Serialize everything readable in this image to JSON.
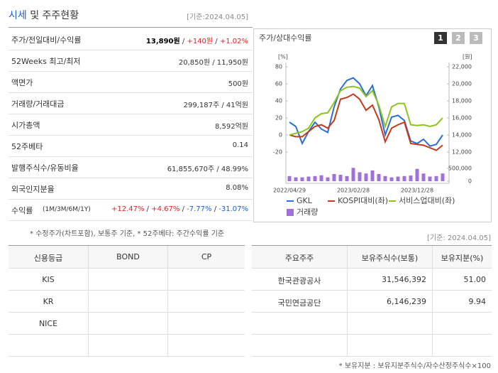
{
  "header": {
    "title_main": "시세",
    "title_rest": "및 주주현황",
    "date": "[기준:2024.04.05]"
  },
  "quote": {
    "rows": [
      {
        "label": "주가/전일대비/수익률",
        "value": [
          {
            "text": "13,890원",
            "bold": true
          },
          {
            "text": " / "
          },
          {
            "text": "+140원",
            "color": "#e02020"
          },
          {
            "text": " / "
          },
          {
            "text": "+1.02%",
            "color": "#e02020"
          }
        ]
      },
      {
        "label": "52Weeks 최고/최저",
        "value": [
          {
            "text": "20,850원 / 11,950원"
          }
        ]
      },
      {
        "label": "액면가",
        "value": [
          {
            "text": "500원"
          }
        ]
      },
      {
        "label": "거래량/거래대금",
        "value": [
          {
            "text": "299,187주 / 41억원"
          }
        ]
      },
      {
        "label": "시가총액",
        "value": [
          {
            "text": "8,592억원"
          }
        ]
      },
      {
        "label": "52주베타",
        "value": [
          {
            "text": "0.14"
          }
        ]
      },
      {
        "label": "발행주식수/유동비율",
        "value": [
          {
            "text": "61,855,670주 / 48.99%"
          }
        ]
      },
      {
        "label": "외국인지분율",
        "value": [
          {
            "text": "8.08%"
          }
        ]
      },
      {
        "label": "수익률",
        "label_sub": "(1M/3M/6M/1Y)",
        "value": [
          {
            "text": "+12.47%",
            "color": "#e02020"
          },
          {
            "text": " / "
          },
          {
            "text": "+4.67%",
            "color": "#e02020"
          },
          {
            "text": " / "
          },
          {
            "text": "-7.77%",
            "color": "#1a5fd0"
          },
          {
            "text": " / "
          },
          {
            "text": "-31.07%",
            "color": "#1a5fd0"
          }
        ]
      }
    ],
    "note": "* 수정주가(차트포함), 보통주 기준, * 52주베타: 주간수익률 기준"
  },
  "chart_data": {
    "type": "line",
    "title": "주가/상대수익률",
    "buttons": [
      "1",
      "2",
      "3"
    ],
    "ylabel": "[%]",
    "y2label": "[원]",
    "categories": [
      "2022/04/29",
      null,
      null,
      null,
      null,
      null,
      null,
      null,
      null,
      null,
      "2023/02/28",
      null,
      null,
      null,
      null,
      null,
      null,
      null,
      null,
      null,
      "2023/12/28",
      null,
      null,
      null,
      null
    ],
    "ylim": [
      -20,
      80
    ],
    "yticks": [
      80,
      60,
      40,
      20,
      0,
      -20
    ],
    "y2lim": [
      12000,
      22000
    ],
    "y2ticks": [
      {
        "value": 22000,
        "label": "22,000"
      },
      {
        "value": 20000,
        "label": "20,000"
      },
      {
        "value": 18000,
        "label": "18,000"
      },
      {
        "value": 16000,
        "label": "16,000"
      },
      {
        "value": 14000,
        "label": "14,000"
      },
      {
        "value": 12000,
        "label": "12,000"
      }
    ],
    "y3lim": [
      0,
      500000
    ],
    "y3ticks": [
      {
        "value": 500000,
        "label": "500,000"
      },
      0
    ],
    "series": [
      {
        "name": "GKL",
        "color": "#2a6fd6",
        "axis": "y2",
        "values": [
          15500,
          15000,
          13000,
          14400,
          15500,
          14700,
          14300,
          17300,
          19400,
          20400,
          20700,
          20000,
          18600,
          19800,
          17300,
          14000,
          16100,
          16300,
          15700,
          13300,
          13000,
          13500,
          12700,
          12900,
          14000
        ]
      },
      {
        "name": "KOSPI대비(좌)",
        "color": "#c8381c",
        "values": [
          0,
          -2,
          -2,
          4,
          10,
          12,
          8,
          17,
          42,
          44,
          48,
          42,
          29,
          35,
          18,
          -8,
          8,
          12,
          15,
          -10,
          -11,
          -12,
          -15,
          -18,
          -12
        ]
      },
      {
        "name": "서비스업대비(좌)",
        "color": "#8cc41e",
        "values": [
          0,
          2,
          4,
          8,
          20,
          25,
          26,
          38,
          52,
          56,
          57,
          55,
          45,
          52,
          35,
          10,
          33,
          37,
          37,
          12,
          11,
          12,
          10,
          12,
          20
        ]
      },
      {
        "name": "거래량",
        "color": "#a071d9",
        "type": "bar",
        "axis": "y3",
        "values": [
          200000,
          150000,
          150000,
          180000,
          200000,
          230000,
          150000,
          280000,
          250000,
          200000,
          520000,
          350000,
          300000,
          420000,
          280000,
          200000,
          150000,
          180000,
          200000,
          220000,
          480000,
          300000,
          180000,
          200000,
          300000
        ]
      }
    ]
  },
  "rating": {
    "headers": [
      "신용등급",
      "BOND",
      "CP"
    ],
    "rows": [
      [
        "KIS"
      ],
      [
        "KR"
      ],
      [
        "NICE"
      ]
    ]
  },
  "holders": {
    "date": "[기준: 2024.04.05]",
    "headers": [
      "주요주주",
      "보유주식수(보통)",
      "보유지분(%)"
    ],
    "rows": [
      [
        "한국관광공사",
        "31,546,392",
        "51.00"
      ],
      [
        "국민연금공단",
        "6,146,239",
        "9.94"
      ]
    ],
    "note": "* 보유지분 : 보유지분주식수/자수산정주식수×100"
  }
}
